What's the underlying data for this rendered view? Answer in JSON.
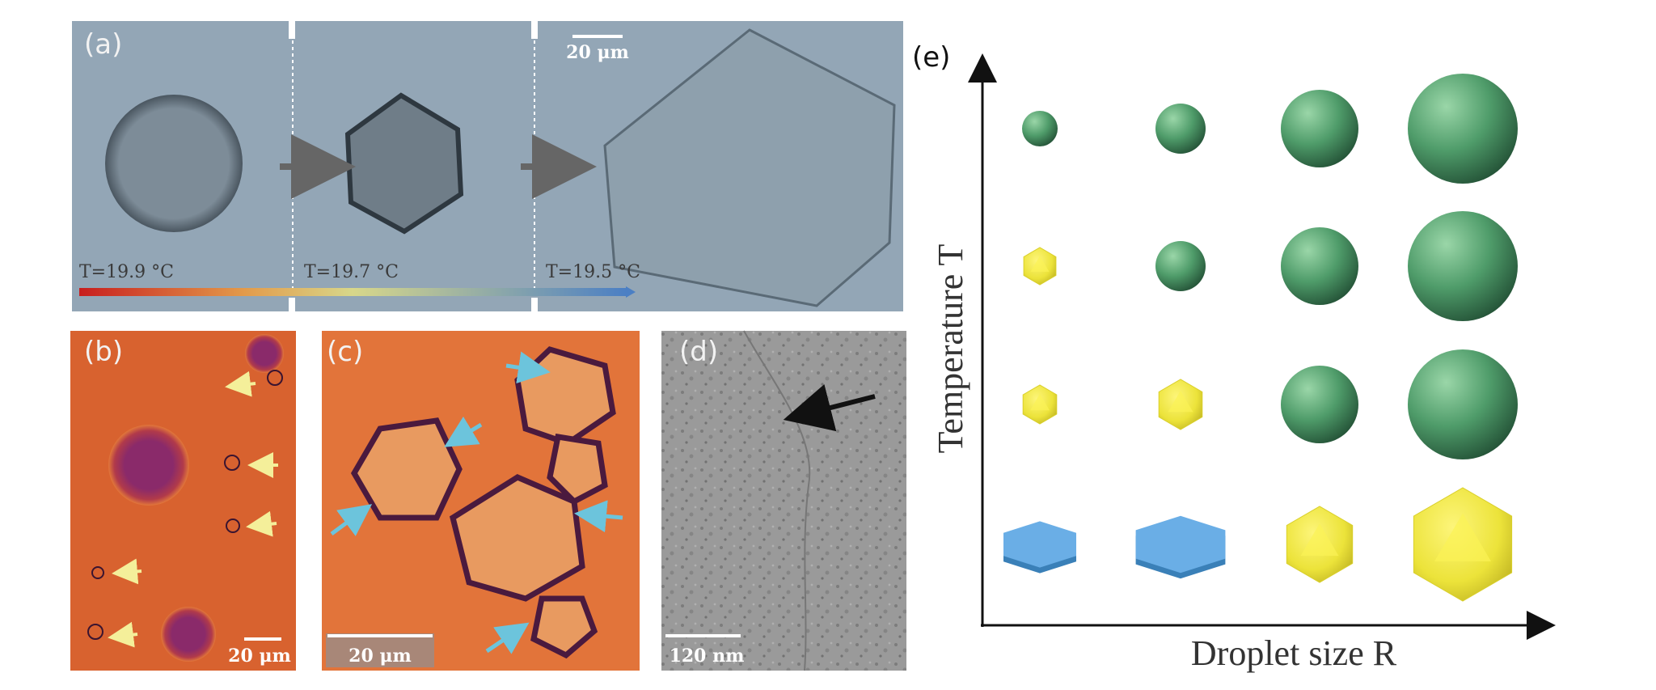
{
  "panels": {
    "a": {
      "label": "(a)",
      "temperatures": [
        "T=19.9 °C",
        "T=19.7 °C",
        "T=19.5 °C"
      ],
      "scale_bar": "20 μm"
    },
    "b": {
      "label": "(b)",
      "scale_bar": "20 μm"
    },
    "c": {
      "label": "(c)",
      "scale_bar": "20 μm"
    },
    "d": {
      "label": "(d)",
      "scale_bar": "120 nm"
    },
    "e": {
      "label": "(e)",
      "y_axis_label": "Temperature T",
      "x_axis_label": "Droplet size R"
    }
  }
}
